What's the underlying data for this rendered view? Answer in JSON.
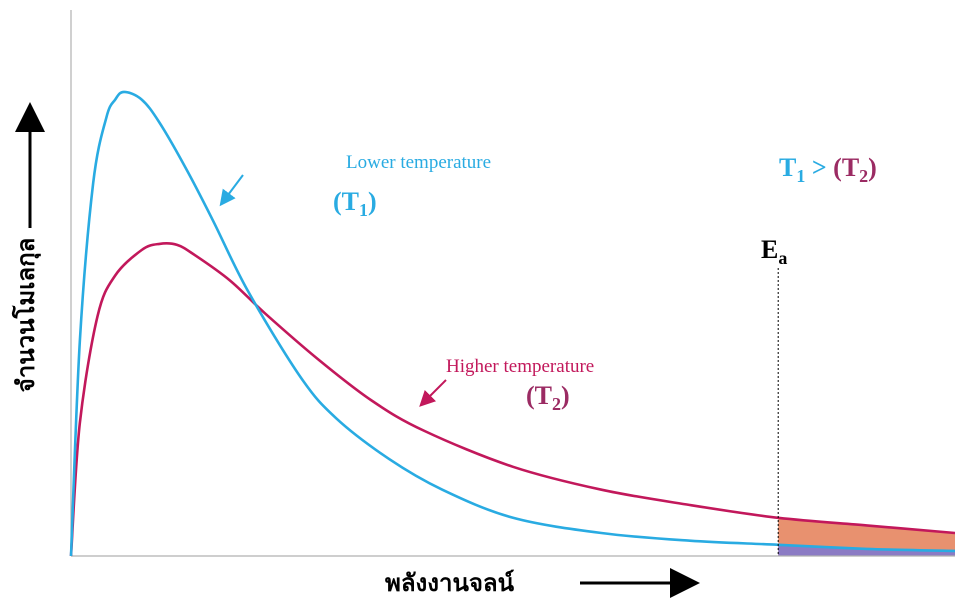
{
  "chart_data": {
    "type": "line",
    "title": "",
    "xlabel": "พลังงานจลน์",
    "ylabel": "จำนวนโมเลกุล",
    "xlim": [
      0,
      10
    ],
    "ylim": [
      0,
      10
    ],
    "grid": false,
    "series": [
      {
        "name": "Lower temperature",
        "label_symbol": "(T",
        "label_sub": "1",
        "label_close": ")",
        "color": "#29abe2",
        "x": [
          0,
          0.1,
          0.25,
          0.4,
          0.5,
          0.6,
          0.8,
          1.0,
          1.3,
          1.6,
          2.0,
          2.6,
          3.0,
          3.6,
          4.2,
          5.0,
          6.0,
          7.0,
          8.0,
          9.0,
          10.0
        ],
        "y": [
          0,
          4.2,
          7.3,
          8.6,
          8.95,
          9.1,
          8.95,
          8.5,
          7.6,
          6.6,
          5.2,
          3.5,
          2.7,
          1.9,
          1.3,
          0.75,
          0.45,
          0.3,
          0.22,
          0.14,
          0.1
        ]
      },
      {
        "name": "Higher temperature",
        "label_symbol": "(T",
        "label_sub": "2",
        "label_close": ")",
        "color": "#c2185b",
        "x": [
          0,
          0.1,
          0.3,
          0.5,
          0.8,
          1.0,
          1.2,
          1.4,
          1.8,
          2.2,
          2.8,
          3.4,
          4.0,
          5.0,
          6.0,
          7.0,
          8.0,
          9.0,
          10.0
        ],
        "y": [
          0,
          2.6,
          4.7,
          5.5,
          6.0,
          6.12,
          6.1,
          5.9,
          5.4,
          4.75,
          3.85,
          3.05,
          2.45,
          1.75,
          1.3,
          1.0,
          0.75,
          0.6,
          0.45
        ]
      }
    ],
    "annotations": {
      "ea_label": "E",
      "ea_sub": "a",
      "ea_x": 8.0,
      "relation": {
        "t1": "T",
        "t1_sub": "1",
        "op": " > ",
        "t2": "(T",
        "t2_sub": "2",
        "t2_close": ")",
        "t1_color": "#29abe2",
        "t2_color": "#9b2b63"
      }
    },
    "colors": {
      "t1_label": "#29abe2",
      "t2_label": "#9b2b63",
      "fill_high": "#e8916f",
      "fill_low": "#8b7bc4"
    }
  }
}
